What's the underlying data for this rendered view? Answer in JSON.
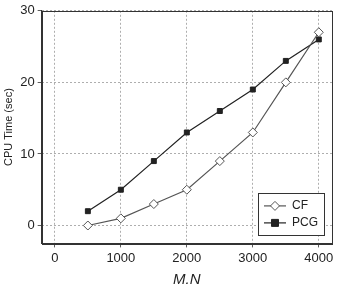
{
  "chart_data": {
    "type": "line",
    "x_label": "M.N",
    "y_label": "CPU Time (sec)",
    "series": [
      {
        "name": "CF",
        "color": "#555555",
        "marker": "diamond",
        "x": [
          500,
          1000,
          1500,
          2000,
          2500,
          3000,
          3500,
          4000
        ],
        "values": [
          0,
          1,
          3,
          5,
          9,
          13,
          20,
          27
        ]
      },
      {
        "name": "PCG",
        "color": "#222222",
        "marker": "square",
        "x": [
          500,
          1000,
          1500,
          2000,
          2500,
          3000,
          3500,
          4000
        ],
        "values": [
          2,
          5,
          9,
          13,
          16,
          19,
          23,
          26
        ]
      }
    ],
    "xlim": [
      -200,
      4200
    ],
    "xticks": [
      0,
      1000,
      2000,
      3000,
      4000
    ],
    "ylim": [
      -2.5,
      30
    ],
    "yticks": [
      0,
      10,
      20,
      30
    ],
    "grid": true,
    "legend": "lower right"
  }
}
